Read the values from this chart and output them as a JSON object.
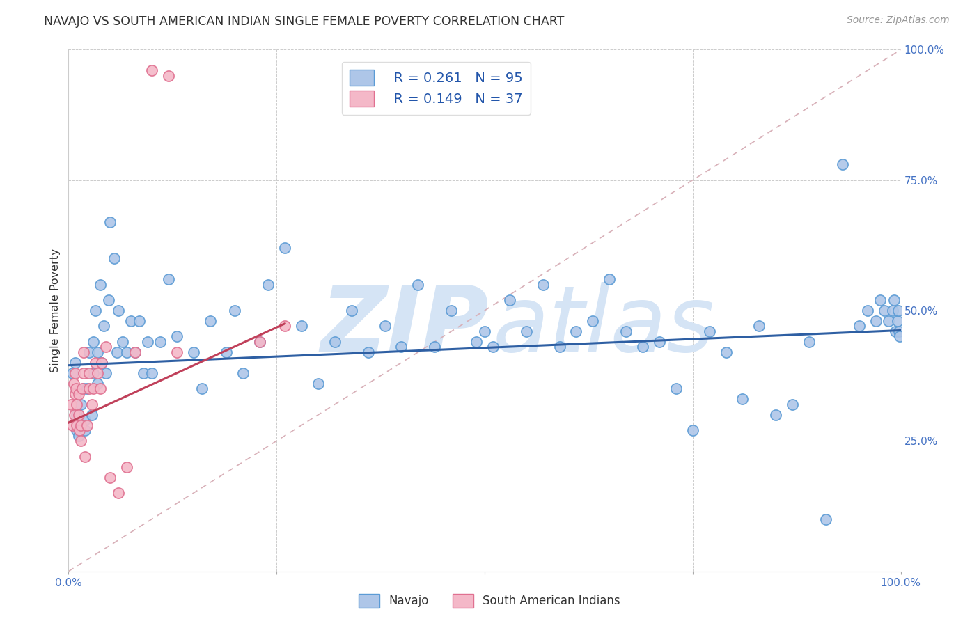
{
  "title": "NAVAJO VS SOUTH AMERICAN INDIAN SINGLE FEMALE POVERTY CORRELATION CHART",
  "source": "Source: ZipAtlas.com",
  "ylabel": "Single Female Poverty",
  "xlim": [
    0,
    1
  ],
  "ylim": [
    0,
    1
  ],
  "xtick_positions": [
    0,
    0.25,
    0.5,
    0.75,
    1.0
  ],
  "xticklabels": [
    "0.0%",
    "",
    "",
    "",
    "100.0%"
  ],
  "ytick_labels_right": [
    "100.0%",
    "75.0%",
    "50.0%",
    "25.0%"
  ],
  "ytick_vals_right": [
    1.0,
    0.75,
    0.5,
    0.25
  ],
  "navajo_color": "#aec6e8",
  "navajo_edge_color": "#5b9bd5",
  "south_american_color": "#f4b8c8",
  "south_american_edge_color": "#e07090",
  "navajo_R": "0.261",
  "navajo_N": "95",
  "south_american_R": "0.149",
  "south_american_N": "37",
  "regression_navajo_color": "#2e5fa3",
  "regression_south_color": "#c0405a",
  "diagonal_color": "#d8b0b8",
  "watermark_zip": "ZIP",
  "watermark_atlas": "atlas",
  "watermark_color": "#d5e4f5",
  "legend_label_navajo": "Navajo",
  "legend_label_south": "South American Indians",
  "navajo_x": [
    0.005,
    0.008,
    0.01,
    0.01,
    0.012,
    0.015,
    0.015,
    0.018,
    0.02,
    0.02,
    0.022,
    0.025,
    0.025,
    0.028,
    0.03,
    0.03,
    0.032,
    0.035,
    0.035,
    0.038,
    0.04,
    0.042,
    0.045,
    0.048,
    0.05,
    0.055,
    0.058,
    0.06,
    0.065,
    0.07,
    0.075,
    0.08,
    0.085,
    0.09,
    0.095,
    0.1,
    0.11,
    0.12,
    0.13,
    0.15,
    0.16,
    0.17,
    0.19,
    0.2,
    0.21,
    0.23,
    0.24,
    0.26,
    0.28,
    0.3,
    0.32,
    0.34,
    0.36,
    0.38,
    0.4,
    0.42,
    0.44,
    0.46,
    0.49,
    0.5,
    0.51,
    0.53,
    0.55,
    0.57,
    0.59,
    0.61,
    0.63,
    0.65,
    0.67,
    0.69,
    0.71,
    0.73,
    0.75,
    0.77,
    0.79,
    0.81,
    0.83,
    0.85,
    0.87,
    0.89,
    0.91,
    0.93,
    0.95,
    0.96,
    0.97,
    0.975,
    0.98,
    0.985,
    0.99,
    0.992,
    0.994,
    0.996,
    0.997,
    0.998,
    0.999
  ],
  "navajo_y": [
    0.38,
    0.4,
    0.3,
    0.27,
    0.26,
    0.28,
    0.32,
    0.35,
    0.27,
    0.29,
    0.35,
    0.38,
    0.42,
    0.3,
    0.38,
    0.44,
    0.5,
    0.36,
    0.42,
    0.55,
    0.4,
    0.47,
    0.38,
    0.52,
    0.67,
    0.6,
    0.42,
    0.5,
    0.44,
    0.42,
    0.48,
    0.42,
    0.48,
    0.38,
    0.44,
    0.38,
    0.44,
    0.56,
    0.45,
    0.42,
    0.35,
    0.48,
    0.42,
    0.5,
    0.38,
    0.44,
    0.55,
    0.62,
    0.47,
    0.36,
    0.44,
    0.5,
    0.42,
    0.47,
    0.43,
    0.55,
    0.43,
    0.5,
    0.44,
    0.46,
    0.43,
    0.52,
    0.46,
    0.55,
    0.43,
    0.46,
    0.48,
    0.56,
    0.46,
    0.43,
    0.44,
    0.35,
    0.27,
    0.46,
    0.42,
    0.33,
    0.47,
    0.3,
    0.32,
    0.44,
    0.1,
    0.78,
    0.47,
    0.5,
    0.48,
    0.52,
    0.5,
    0.48,
    0.5,
    0.52,
    0.46,
    0.48,
    0.5,
    0.46,
    0.45
  ],
  "south_x": [
    0.003,
    0.005,
    0.006,
    0.007,
    0.008,
    0.008,
    0.009,
    0.01,
    0.01,
    0.012,
    0.012,
    0.013,
    0.015,
    0.015,
    0.016,
    0.018,
    0.018,
    0.02,
    0.022,
    0.025,
    0.025,
    0.028,
    0.03,
    0.032,
    0.035,
    0.038,
    0.04,
    0.045,
    0.05,
    0.06,
    0.07,
    0.08,
    0.1,
    0.12,
    0.13,
    0.23,
    0.26
  ],
  "south_y": [
    0.32,
    0.28,
    0.36,
    0.3,
    0.34,
    0.38,
    0.35,
    0.32,
    0.28,
    0.3,
    0.34,
    0.27,
    0.25,
    0.28,
    0.35,
    0.38,
    0.42,
    0.22,
    0.28,
    0.35,
    0.38,
    0.32,
    0.35,
    0.4,
    0.38,
    0.35,
    0.4,
    0.43,
    0.18,
    0.15,
    0.2,
    0.42,
    0.96,
    0.95,
    0.42,
    0.44,
    0.47
  ],
  "navajo_line_x": [
    0.0,
    1.0
  ],
  "navajo_line_y": [
    0.395,
    0.462
  ],
  "south_line_x": [
    0.0,
    0.26
  ],
  "south_line_y": [
    0.285,
    0.475
  ]
}
